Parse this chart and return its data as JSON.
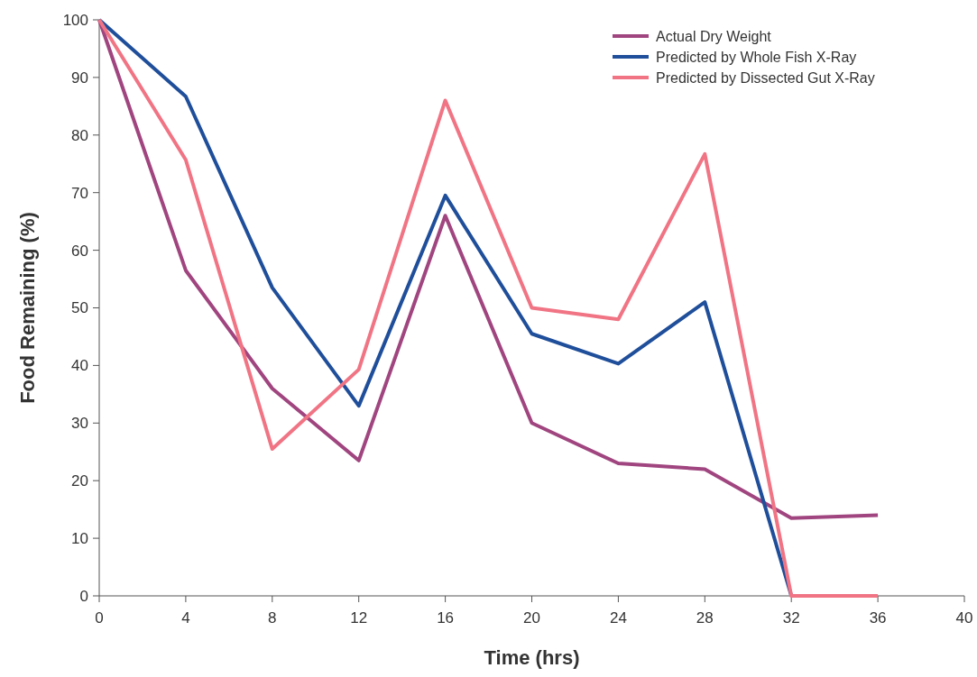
{
  "chart_data": {
    "type": "line",
    "xlabel": "Time (hrs)",
    "ylabel": "Food Remaining (%)",
    "x": [
      0,
      4,
      8,
      12,
      16,
      20,
      24,
      28,
      32,
      36
    ],
    "series": [
      {
        "name": "Actual Dry Weight",
        "color": "#a0457f",
        "values": [
          100,
          56.5,
          36,
          23.5,
          66,
          30,
          23,
          22,
          13.5,
          14
        ]
      },
      {
        "name": "Predicted by Whole Fish X-Ray",
        "color": "#1f4e9a",
        "x": [
          0,
          4,
          8,
          12,
          16,
          20,
          24,
          28,
          32
        ],
        "values": [
          100,
          86.7,
          53.5,
          33,
          69.5,
          45.5,
          40.3,
          51,
          0
        ]
      },
      {
        "name": "Predicted by Dissected Gut X-Ray",
        "color": "#f07484",
        "values": [
          100,
          75.7,
          25.5,
          39.3,
          86,
          50,
          48,
          76.7,
          0,
          0
        ]
      }
    ],
    "xlim": [
      0,
      40
    ],
    "xticks": [
      0,
      4,
      8,
      12,
      16,
      20,
      24,
      28,
      32,
      36,
      40
    ],
    "ylim": [
      0,
      100
    ],
    "yticks": [
      0,
      10,
      20,
      30,
      40,
      50,
      60,
      70,
      80,
      90,
      100
    ],
    "grid": false,
    "legend": "top right",
    "marker": "none",
    "line_style": "solid"
  }
}
